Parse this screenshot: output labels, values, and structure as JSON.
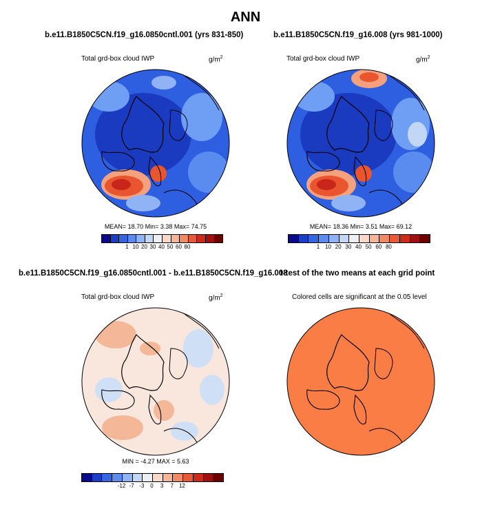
{
  "page_title": "ANN",
  "panels": {
    "p1": {
      "title": "b.e11.B1850C5CN.f19_g16.0850cntl.001 (yrs 831-850)",
      "subtitle": "Total grd-box cloud IWP",
      "units": "g/m",
      "units_exp": "2",
      "stats": "MEAN= 18.70  Min=  3.38  Max= 74.75"
    },
    "p2": {
      "title": "b.e11.B1850C5CN.f19_g16.008 (yrs 981-1000)",
      "subtitle": "Total grd-box cloud IWP",
      "units": "g/m",
      "units_exp": "2",
      "stats": "MEAN= 18.36  Min=  3.51  Max= 69.12"
    },
    "p3": {
      "title": "b.e11.B1850C5CN.f19_g16.0850cntl.001 - b.e11.B1850C5CN.f19_g16.008",
      "subtitle": "Total grd-box cloud IWP",
      "units": "g/m",
      "units_exp": "2",
      "stats": "MIN = -4.27 MAX =  5.63"
    },
    "p4": {
      "title": "t-test of the two means at each grid point",
      "subtitle": "Colored cells are significant at the 0.05 level"
    }
  },
  "colorbars": {
    "abs": {
      "labels": [
        "1",
        "10",
        "20",
        "30",
        "40",
        "50",
        "60",
        "80"
      ],
      "colors": [
        "#0a0a8a",
        "#1b3fc4",
        "#3366e0",
        "#5a8cf0",
        "#8fb3f5",
        "#c2d6f5",
        "#ecf0f5",
        "#f8d8c8",
        "#f6b598",
        "#f08a65",
        "#e65a3a",
        "#cc2a1a",
        "#a11010",
        "#6e0000"
      ]
    },
    "diff": {
      "labels": [
        "-12",
        "-7",
        "-3",
        "0",
        "3",
        "7",
        "12"
      ],
      "colors": [
        "#0a0a8a",
        "#1b3fc4",
        "#3366e0",
        "#5a8cf0",
        "#8fb3f5",
        "#c2d6f5",
        "#ecf0f5",
        "#f8d8c8",
        "#f6b598",
        "#f08a65",
        "#e65a3a",
        "#cc2a1a",
        "#a11010",
        "#6e0000"
      ]
    }
  },
  "map_colors": {
    "abs_base": "#2d5fe0",
    "abs_dark": "#1a3ac0",
    "abs_light": "#6f9ef5",
    "warm": "#e8552e",
    "warm_core": "#c8261a",
    "warm_edge": "#f6a17e",
    "diff_base": "#f9e6dc",
    "diff_warm": "#f4b898",
    "diff_cool": "#cfe0f6",
    "sig": "#fa7d45"
  }
}
